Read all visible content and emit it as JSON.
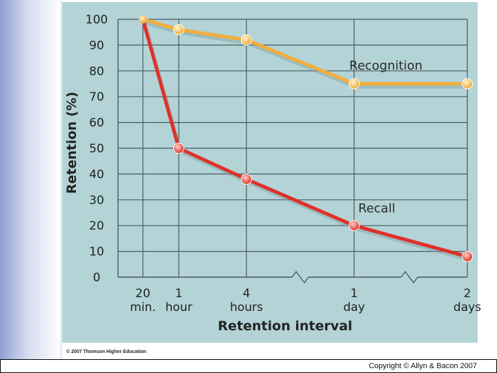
{
  "chart_data": {
    "type": "line",
    "ylabel": "Retention (%)",
    "xlabel": "Retention interval",
    "ylim": [
      0,
      100
    ],
    "yticks": [
      0,
      10,
      20,
      30,
      40,
      50,
      60,
      70,
      80,
      90,
      100
    ],
    "categories": [
      {
        "line1": "20",
        "line2": "min."
      },
      {
        "line1": "1",
        "line2": "hour"
      },
      {
        "line1": "4",
        "line2": "hours"
      },
      {
        "line1": "1",
        "line2": "day"
      },
      {
        "line1": "2",
        "line2": "days"
      }
    ],
    "axis_breaks_between": [
      [
        2,
        3
      ],
      [
        3,
        4
      ]
    ],
    "grid": true,
    "series": [
      {
        "name": "Recognition",
        "color": "#f2ae3a",
        "marker": "#f6c24f",
        "values": [
          100,
          96,
          92,
          75,
          75
        ]
      },
      {
        "name": "Recall",
        "color": "#e0302a",
        "marker": "#ec4a3c",
        "values": [
          100,
          50,
          38,
          20,
          8
        ]
      }
    ]
  },
  "credit": "© 2007 Thomson Higher Education",
  "copyright": "Copyright © Allyn & Bacon 2007",
  "colors": {
    "plot_bg": "#b3d3d6",
    "grid": "#4a5560"
  }
}
